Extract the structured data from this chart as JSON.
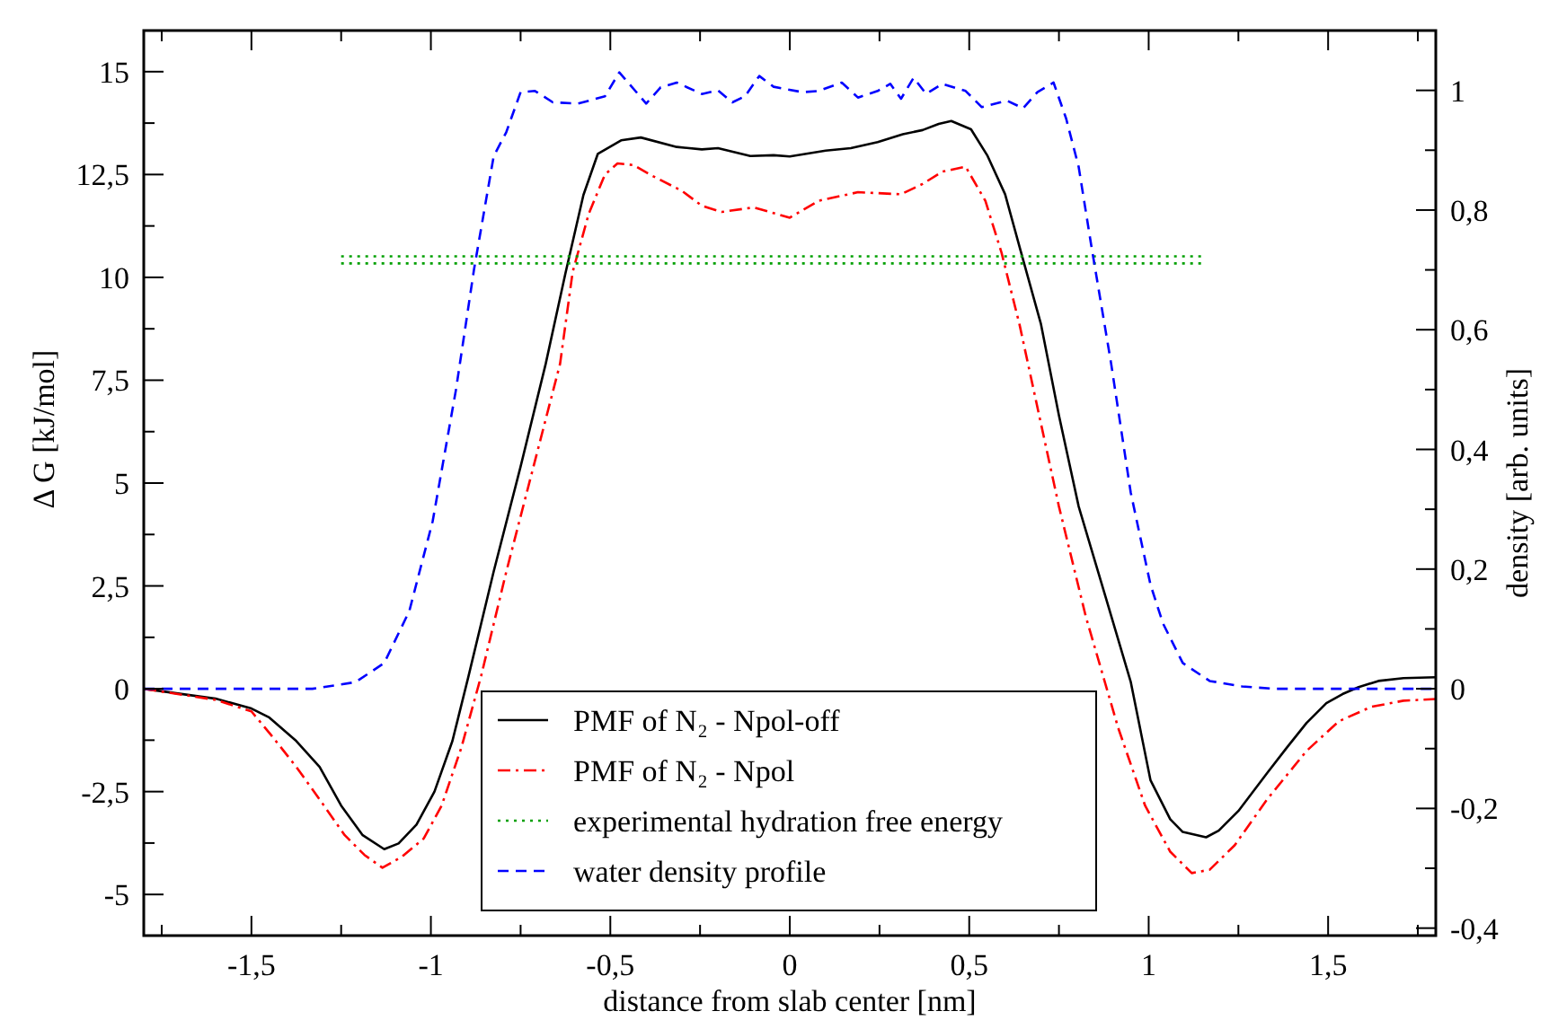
{
  "chart_data": {
    "type": "line",
    "xlabel": "distance from slab center [nm]",
    "ylabel": "Δ G [kJ/mol]",
    "y2label": "density [arb. units]",
    "xlim": [
      -1.8,
      1.8
    ],
    "ylim": [
      -6,
      16
    ],
    "y2lim": [
      -0.4125,
      1.1
    ],
    "xticks": [
      {
        "value": -1.75,
        "label": null
      },
      {
        "value": -1.5,
        "label": "-1,5"
      },
      {
        "value": -1.25,
        "label": null
      },
      -1,
      {
        "value": -0.75,
        "label": null
      },
      {
        "value": -0.5,
        "label": "-0,5"
      },
      {
        "value": -0.25,
        "label": null
      },
      0,
      {
        "value": 0.25,
        "label": null
      },
      {
        "value": 0.5,
        "label": "0,5"
      },
      {
        "value": 0.75,
        "label": null
      },
      1,
      {
        "value": 1.25,
        "label": null
      },
      {
        "value": 1.5,
        "label": "1,5"
      },
      {
        "value": 1.75,
        "label": null
      }
    ],
    "yticks": [
      -5,
      {
        "value": -3.75,
        "label": null
      },
      {
        "value": -2.5,
        "label": "-2,5"
      },
      {
        "value": -1.25,
        "label": null
      },
      0,
      {
        "value": 1.25,
        "label": null
      },
      {
        "value": 2.5,
        "label": "2,5"
      },
      {
        "value": 3.75,
        "label": null
      },
      5,
      {
        "value": 6.25,
        "label": null
      },
      {
        "value": 7.5,
        "label": "7,5"
      },
      {
        "value": 8.75,
        "label": null
      },
      10,
      {
        "value": 11.25,
        "label": null
      },
      {
        "value": 12.5,
        "label": "12,5"
      },
      {
        "value": 13.75,
        "label": null
      },
      15
    ],
    "y2ticks": [
      {
        "value": -0.4,
        "label": "-0,4"
      },
      {
        "value": -0.3,
        "label": null
      },
      {
        "value": -0.2,
        "label": "-0,2"
      },
      {
        "value": -0.1,
        "label": null
      },
      0,
      {
        "value": 0.1,
        "label": null
      },
      {
        "value": 0.2,
        "label": "0,2"
      },
      {
        "value": 0.3,
        "label": null
      },
      {
        "value": 0.4,
        "label": "0,4"
      },
      {
        "value": 0.5,
        "label": null
      },
      {
        "value": 0.6,
        "label": "0,6"
      },
      {
        "value": 0.7,
        "label": null
      },
      {
        "value": 0.8,
        "label": "0,8"
      },
      {
        "value": 0.9,
        "label": null
      },
      1
    ],
    "legend": "bottom",
    "grid": false,
    "series": [
      {
        "name": "PMF of N₂ - Npol-off",
        "color": "#000000",
        "line_style": "solid",
        "x": [
          -1.8,
          -1.6,
          -1.5,
          -1.45,
          -1.375,
          -1.31,
          -1.25,
          -1.19,
          -1.13,
          -1.09,
          -1.04,
          -0.99,
          -0.94,
          -0.895,
          -0.825,
          -0.75,
          -0.68,
          -0.625,
          -0.575,
          -0.535,
          -0.47,
          -0.415,
          -0.315,
          -0.245,
          -0.2,
          -0.11,
          -0.045,
          0,
          0.1,
          0.17,
          0.245,
          0.315,
          0.37,
          0.415,
          0.45,
          0.505,
          0.55,
          0.6,
          0.64,
          0.7,
          0.75,
          0.805,
          0.88,
          0.95,
          1.005,
          1.06,
          1.095,
          1.16,
          1.195,
          1.25,
          1.33,
          1.385,
          1.44,
          1.495,
          1.54,
          1.585,
          1.64,
          1.71,
          1.8
        ],
        "values": [
          0,
          -0.24,
          -0.48,
          -0.7,
          -1.27,
          -1.9,
          -2.84,
          -3.56,
          -3.9,
          -3.76,
          -3.3,
          -2.5,
          -1.27,
          0.31,
          2.85,
          5.4,
          7.9,
          10.1,
          12.0,
          13.0,
          13.33,
          13.4,
          13.17,
          13.11,
          13.14,
          12.95,
          12.97,
          12.94,
          13.08,
          13.14,
          13.29,
          13.48,
          13.58,
          13.73,
          13.8,
          13.6,
          12.97,
          12.02,
          10.75,
          8.86,
          6.64,
          4.43,
          2.23,
          0.17,
          -2.22,
          -3.17,
          -3.48,
          -3.61,
          -3.45,
          -2.97,
          -2.05,
          -1.43,
          -0.83,
          -0.35,
          -0.13,
          0.04,
          0.19,
          0.26,
          0.28
        ]
      },
      {
        "name": "PMF of N₂ - Npol",
        "color": "#ff0000",
        "line_style": "dashdot",
        "x": [
          -1.8,
          -1.6,
          -1.5,
          -1.44,
          -1.375,
          -1.31,
          -1.24,
          -1.185,
          -1.135,
          -1.08,
          -1.02,
          -0.97,
          -0.915,
          -0.86,
          -0.79,
          -0.715,
          -0.64,
          -0.605,
          -0.56,
          -0.515,
          -0.48,
          -0.435,
          -0.39,
          -0.3,
          -0.245,
          -0.19,
          -0.1,
          0,
          0.08,
          0.19,
          0.31,
          0.37,
          0.425,
          0.49,
          0.545,
          0.59,
          0.64,
          0.695,
          0.75,
          0.825,
          0.915,
          0.99,
          1.06,
          1.12,
          1.17,
          1.24,
          1.33,
          1.44,
          1.53,
          1.62,
          1.71,
          1.8
        ],
        "values": [
          0,
          -0.27,
          -0.55,
          -1.18,
          -1.9,
          -2.69,
          -3.56,
          -4.04,
          -4.35,
          -4.08,
          -3.64,
          -2.84,
          -1.43,
          0.31,
          2.84,
          5.37,
          7.9,
          10.13,
          11.55,
          12.5,
          12.77,
          12.73,
          12.5,
          12.1,
          11.74,
          11.59,
          11.7,
          11.45,
          11.86,
          12.07,
          12.02,
          12.27,
          12.57,
          12.69,
          11.86,
          10.6,
          8.86,
          6.64,
          4.43,
          1.75,
          -0.95,
          -2.84,
          -3.96,
          -4.48,
          -4.4,
          -3.8,
          -2.69,
          -1.51,
          -0.79,
          -0.44,
          -0.29,
          -0.25
        ]
      },
      {
        "name": "experimental hydration free energy",
        "color": "#00a000",
        "line_style": "dotted",
        "x": [
          -1.25,
          1.15
        ],
        "values": [
          10.51,
          10.51
        ]
      },
      {
        "color": "#00a000",
        "line_style": "dotted",
        "x": [
          -1.25,
          1.15
        ],
        "values": [
          10.34,
          10.34
        ]
      },
      {
        "name": "water density profile",
        "axis": "y2",
        "color": "#0000ff",
        "line_style": "dashed",
        "x": [
          -1.8,
          -1.33,
          -1.21,
          -1.13,
          -1.06,
          -0.995,
          -0.93,
          -0.88,
          -0.825,
          -0.79,
          -0.75,
          -0.71,
          -0.66,
          -0.59,
          -0.515,
          -0.475,
          -0.4,
          -0.36,
          -0.315,
          -0.245,
          -0.2,
          -0.16,
          -0.125,
          -0.085,
          -0.045,
          0.035,
          0.08,
          0.145,
          0.19,
          0.245,
          0.28,
          0.31,
          0.345,
          0.38,
          0.425,
          0.49,
          0.535,
          0.605,
          0.65,
          0.69,
          0.735,
          0.77,
          0.805,
          0.84,
          0.895,
          0.95,
          1.005,
          1.04,
          1.095,
          1.17,
          1.26,
          1.35,
          1.8
        ],
        "values": [
          0,
          0,
          0.011,
          0.043,
          0.13,
          0.28,
          0.5,
          0.7,
          0.89,
          0.93,
          0.997,
          0.999,
          0.98,
          0.978,
          0.99,
          1.03,
          0.978,
          1.005,
          1.013,
          0.994,
          1.0,
          0.98,
          0.99,
          1.024,
          1.006,
          0.997,
          0.999,
          1.013,
          0.988,
          0.999,
          1.011,
          0.986,
          1.021,
          0.994,
          1.011,
          0.999,
          0.972,
          0.983,
          0.97,
          0.997,
          1.013,
          0.953,
          0.872,
          0.741,
          0.545,
          0.328,
          0.174,
          0.109,
          0.043,
          0.013,
          0.004,
          0,
          0
        ]
      }
    ]
  }
}
